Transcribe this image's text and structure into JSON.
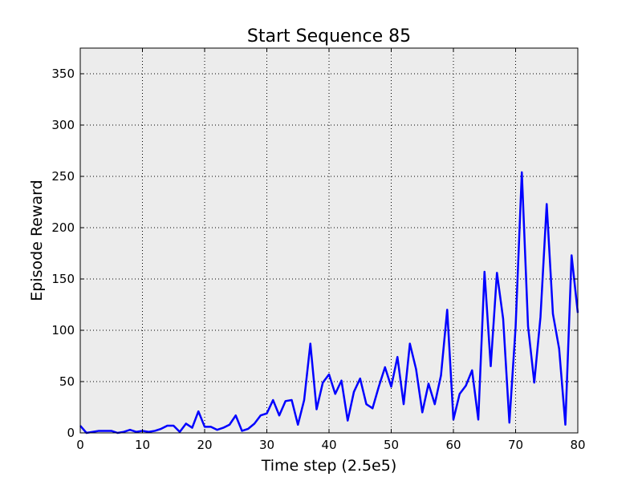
{
  "chart_data": {
    "type": "line",
    "title": "Start Sequence 85",
    "xlabel": "Time step (2.5e5)",
    "ylabel": "Episode Reward",
    "xlim": [
      0,
      80
    ],
    "ylim": [
      0,
      375
    ],
    "xticks": [
      0,
      10,
      20,
      30,
      40,
      50,
      60,
      70,
      80
    ],
    "yticks": [
      0,
      50,
      100,
      150,
      200,
      250,
      300,
      350
    ],
    "grid": true,
    "background": "#ececec",
    "series": [
      {
        "color": "#0000ff",
        "x": [
          0,
          1,
          2,
          3,
          4,
          5,
          6,
          7,
          8,
          9,
          10,
          11,
          12,
          13,
          14,
          15,
          16,
          17,
          18,
          19,
          20,
          21,
          22,
          23,
          24,
          25,
          26,
          27,
          28,
          29,
          30,
          31,
          32,
          33,
          34,
          35,
          36,
          37,
          38,
          39,
          40,
          41,
          42,
          43,
          44,
          45,
          46,
          47,
          48,
          49,
          50,
          51,
          52,
          53,
          54,
          55,
          56,
          57,
          58,
          59,
          60,
          61,
          62,
          63,
          64,
          65,
          66,
          67,
          68,
          69,
          70,
          71,
          72,
          73,
          74,
          75,
          76,
          77,
          78,
          79,
          80
        ],
        "y": [
          7,
          0,
          1,
          2,
          2,
          2,
          0,
          1,
          3,
          1,
          2,
          1,
          2,
          4,
          7,
          7,
          1,
          9,
          5,
          21,
          6,
          6,
          3,
          5,
          8,
          17,
          2,
          4,
          9,
          17,
          19,
          32,
          17,
          31,
          32,
          8,
          32,
          87,
          23,
          49,
          57,
          38,
          51,
          12,
          40,
          53,
          28,
          24,
          45,
          64,
          45,
          74,
          28,
          87,
          62,
          20,
          48,
          28,
          56,
          120,
          13,
          38,
          46,
          61,
          13,
          157,
          65,
          156,
          111,
          10,
          103,
          254,
          104,
          49,
          113,
          223,
          116,
          82,
          8,
          173,
          117
        ]
      }
    ]
  }
}
